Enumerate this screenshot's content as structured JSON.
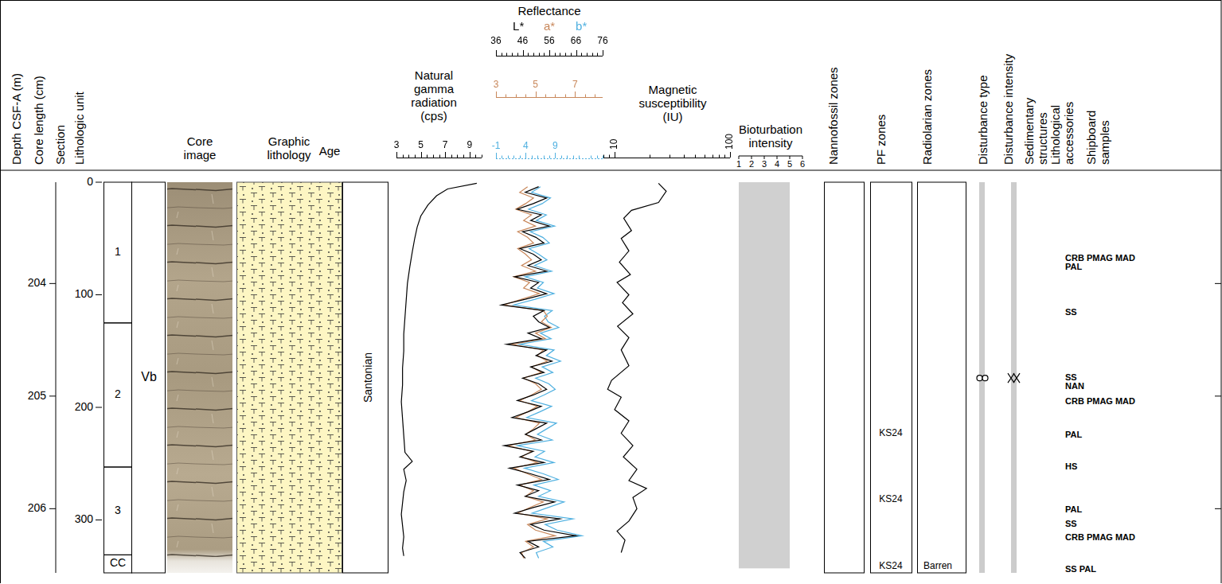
{
  "headers": [
    "Depth CSF-A (m)",
    "Core length (cm)",
    "Section",
    "Lithologic unit",
    "Core image",
    "Graphic lithology",
    "Age",
    "Natural gamma radiation (cps)",
    "Reflectance",
    "Magnetic susceptibility (IU)",
    "Bioturbation intensity",
    "Nannofossil zones",
    "PF zones",
    "Radiolarian zones",
    "Disturbance type",
    "Disturbance intensity",
    "Sedimentary structures",
    "Lithological accessories",
    "Shipboard samples"
  ],
  "depth_axis": {
    "lim": [
      203.1,
      206.57
    ],
    "ticks": [
      204,
      205,
      206
    ]
  },
  "length_axis": {
    "lim": [
      0,
      347
    ],
    "ticks": [
      0,
      100,
      200,
      300
    ]
  },
  "sections": [
    {
      "label": "1",
      "top_cm": 0,
      "bottom_cm": 125
    },
    {
      "label": "2",
      "top_cm": 125,
      "bottom_cm": 253
    },
    {
      "label": "3",
      "top_cm": 253,
      "bottom_cm": 331
    },
    {
      "label": "CC",
      "top_cm": 331,
      "bottom_cm": 347
    }
  ],
  "lithologic_units": [
    {
      "label": "Vb",
      "top_cm": 0,
      "bottom_cm": 347
    }
  ],
  "ages": [
    {
      "label": "Santonian",
      "top_cm": 0,
      "bottom_cm": 347
    }
  ],
  "bioturbation": {
    "xlim": [
      1,
      6
    ],
    "xticks": [
      1,
      2,
      3,
      4,
      5,
      6
    ],
    "intervals": [
      {
        "top_cm": 0,
        "bottom_cm": 343,
        "value": 5
      }
    ]
  },
  "pf_zones": [
    {
      "label": "KS24",
      "cm": 223
    },
    {
      "label": "KS24",
      "cm": 282
    },
    {
      "label": "KS24",
      "cm": 341
    }
  ],
  "radiolarian_zones": [
    {
      "label": "Barren",
      "cm": 341
    }
  ],
  "disturbance": {
    "top_cm": 0,
    "bottom_cm": 347,
    "symbol_cm": 174
  },
  "shipboard_samples": [
    {
      "cm": 68,
      "labels": [
        "CRB",
        "PMAG",
        "MAD"
      ]
    },
    {
      "cm": 76,
      "labels": [
        "PAL"
      ]
    },
    {
      "cm": 116,
      "labels": [
        "SS"
      ]
    },
    {
      "cm": 174,
      "labels": [
        "SS"
      ]
    },
    {
      "cm": 182,
      "labels": [
        "NAN"
      ]
    },
    {
      "cm": 195,
      "labels": [
        "CRB",
        "PMAG",
        "MAD"
      ]
    },
    {
      "cm": 225,
      "labels": [
        "PAL"
      ]
    },
    {
      "cm": 253,
      "labels": [
        "HS"
      ]
    },
    {
      "cm": 291,
      "labels": [
        "PAL"
      ]
    },
    {
      "cm": 304,
      "labels": [
        "SS"
      ]
    },
    {
      "cm": 316,
      "labels": [
        "CRB",
        "PMAG",
        "MAD"
      ]
    },
    {
      "cm": 344,
      "labels": [
        "SS",
        "PAL"
      ]
    }
  ],
  "chart_data": [
    {
      "type": "line",
      "ylim": [
        0,
        347
      ],
      "xlim": [
        3,
        10
      ],
      "xticks": [
        3,
        5,
        7,
        9
      ],
      "tick_labels": "x",
      "y": [
        1,
        6,
        12,
        20,
        30,
        40,
        50,
        62,
        75,
        90,
        105,
        120,
        135,
        150,
        165,
        180,
        195,
        210,
        225,
        240,
        248,
        255,
        265,
        275,
        285,
        295,
        305,
        315,
        325,
        332
      ],
      "series": [
        {
          "color": "#000000",
          "values": [
            9.6,
            7.2,
            6.3,
            5.6,
            5.0,
            4.7,
            4.5,
            4.3,
            4.1,
            3.9,
            3.8,
            3.7,
            3.6,
            3.6,
            3.5,
            3.5,
            3.4,
            3.5,
            3.6,
            3.7,
            4.3,
            3.6,
            3.8,
            3.6,
            3.5,
            3.4,
            3.5,
            3.6,
            3.5,
            3.6
          ]
        }
      ]
    },
    {
      "type": "line",
      "ylim": [
        0,
        347
      ],
      "tick_labels": "x",
      "y": [
        4,
        9,
        14,
        19,
        24,
        29,
        34,
        39,
        44,
        49,
        54,
        59,
        64,
        69,
        74,
        79,
        84,
        89,
        94,
        99,
        104,
        109,
        114,
        119,
        124,
        129,
        134,
        139,
        144,
        149,
        154,
        159,
        164,
        169,
        174,
        179,
        184,
        189,
        194,
        199,
        204,
        209,
        214,
        219,
        224,
        229,
        234,
        239,
        244,
        249,
        254,
        259,
        264,
        269,
        274,
        279,
        284,
        289,
        294,
        299,
        304,
        309,
        314,
        319,
        324,
        329,
        334
      ],
      "series": [
        {
          "name": "L*",
          "color": "#000000",
          "xlim": [
            36,
            76
          ],
          "xticks": [
            36,
            46,
            56,
            66,
            76
          ],
          "values": [
            52,
            47,
            55,
            50,
            44,
            53,
            49,
            56,
            46,
            51,
            54,
            45,
            50,
            53,
            48,
            55,
            43,
            52,
            49,
            55,
            47,
            38,
            54,
            50,
            52,
            56,
            48,
            53,
            40,
            55,
            51,
            57,
            49,
            54,
            46,
            52,
            55,
            50,
            44,
            53,
            48,
            42,
            55,
            51,
            47,
            53,
            39,
            50,
            45,
            54,
            41,
            49,
            56,
            44,
            52,
            47,
            58,
            50,
            43,
            60,
            49,
            54,
            66,
            48,
            52,
            45,
            47
          ]
        },
        {
          "name": "a*",
          "color": "#c8875a",
          "xlim": [
            3,
            8.4
          ],
          "xticks": [
            3,
            5,
            7
          ],
          "values": [
            4.6,
            4.2,
            4.9,
            4.5,
            4.0,
            4.8,
            4.4,
            5.0,
            4.1,
            4.6,
            4.9,
            4.1,
            4.5,
            4.8,
            4.3,
            5.0,
            3.9,
            4.7,
            4.4,
            5.2,
            4.3,
            3.4,
            5.4,
            5.6,
            5.3,
            5.8,
            5.0,
            5.5,
            3.8,
            5.4,
            5.1,
            5.6,
            4.8,
            5.3,
            4.4,
            5.0,
            5.3,
            4.8,
            4.2,
            5.1,
            4.6,
            4.0,
            5.2,
            4.9,
            4.5,
            5.0,
            3.6,
            4.8,
            4.3,
            5.1,
            3.9,
            4.6,
            5.3,
            4.2,
            4.9,
            4.5,
            5.4,
            4.7,
            4.1,
            5.6,
            4.6,
            5.0,
            6.0,
            4.5,
            4.9,
            4.3,
            4.4
          ]
        },
        {
          "name": "b*",
          "color": "#4fb0e0",
          "xlim": [
            -1,
            17
          ],
          "xticks": [
            -1,
            4,
            9
          ],
          "values": [
            6.5,
            5.0,
            8.2,
            6.8,
            4.5,
            7.5,
            5.8,
            8.9,
            4.8,
            6.9,
            8.0,
            4.6,
            6.2,
            7.6,
            5.5,
            8.4,
            3.9,
            7.0,
            6.0,
            8.8,
            5.6,
            2.0,
            8.5,
            7.2,
            7.8,
            9.6,
            6.5,
            8.3,
            3.0,
            8.8,
            7.5,
            9.9,
            6.8,
            8.6,
            5.7,
            7.9,
            9.0,
            7.1,
            5.0,
            8.4,
            6.4,
            4.2,
            9.2,
            7.6,
            6.0,
            8.5,
            2.6,
            7.2,
            5.6,
            8.8,
            3.8,
            7.0,
            9.5,
            5.4,
            8.2,
            6.2,
            10.5,
            7.8,
            5.1,
            12.0,
            7.3,
            9.3,
            13.5,
            7.0,
            8.6,
            5.8,
            6.2
          ]
        }
      ]
    },
    {
      "type": "line",
      "log": "x",
      "ylim": [
        0,
        347
      ],
      "xlim": [
        8,
        100
      ],
      "xticks": [
        10,
        100
      ],
      "tick_labels": "x",
      "y": [
        1,
        8,
        18,
        25,
        32,
        43,
        50,
        61,
        71,
        82,
        89,
        100,
        107,
        117,
        128,
        138,
        149,
        163,
        176,
        184,
        191,
        202,
        212,
        223,
        234,
        244,
        255,
        265,
        272,
        280,
        290,
        301,
        310,
        318,
        329
      ],
      "series": [
        {
          "color": "#000000",
          "values": [
            24,
            28,
            24,
            14,
            12,
            14,
            11.4,
            13.3,
            11,
            13.7,
            10.5,
            13.3,
            11.7,
            14.4,
            10.6,
            13.3,
            11.4,
            13.3,
            9.4,
            8.7,
            11.4,
            10,
            13.3,
            11.4,
            14.4,
            11.9,
            15.6,
            13.3,
            18.9,
            14.4,
            15.6,
            13.3,
            10.5,
            12.3,
            11.4
          ]
        }
      ]
    }
  ]
}
